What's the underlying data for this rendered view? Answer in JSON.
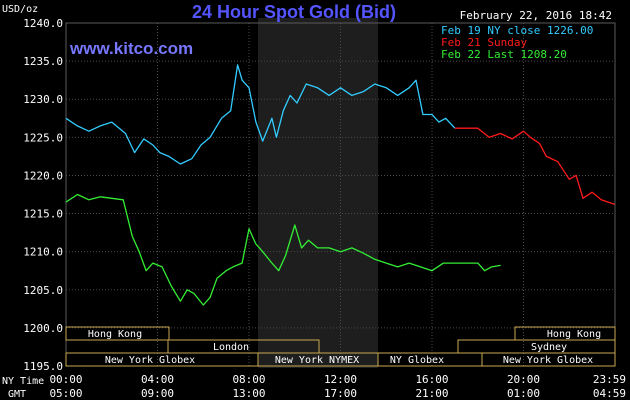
{
  "header": {
    "title": "24 Hour Spot Gold (Bid)",
    "date": "February 22, 2016 18:42",
    "site": "www.kitco.com",
    "unit": "USD/oz"
  },
  "legend": [
    {
      "label": "Feb 19 NY close 1226.00",
      "color": "#33ccff"
    },
    {
      "label": "Feb 21 Sunday",
      "color": "#ff1a1a"
    },
    {
      "label": "Feb 22 Last 1208.20",
      "color": "#33ee33"
    }
  ],
  "axis": {
    "y_ticks": [
      "1240.0",
      "1235.0",
      "1230.0",
      "1225.0",
      "1220.0",
      "1215.0",
      "1210.0",
      "1205.0",
      "1200.0",
      "1195.0"
    ],
    "ny_label": "NY Time",
    "gmt_label": "GMT",
    "ny_ticks": [
      "00:00",
      "04:00",
      "08:00",
      "12:00",
      "16:00",
      "20:00",
      "23:59"
    ],
    "gmt_ticks": [
      "05:00",
      "09:00",
      "13:00",
      "17:00",
      "21:00",
      "01:00",
      "04:59"
    ]
  },
  "sessions": {
    "hong_kong_1": "Hong Kong",
    "hong_kong_2": "Hong Kong",
    "london": "London",
    "sydney": "Sydney",
    "ny_globex_1": "New York Globex",
    "ny_nymex": "New York NYMEX",
    "ny_globex_2": "NY Globex",
    "ny_globex_3": "New York Globex"
  },
  "colors": {
    "background": "#000000",
    "grid": "#4a4a4a",
    "axis_text": "#ffffff",
    "title": "#5555ff",
    "site": "#7777ff",
    "highlight": "#1e1e1e",
    "session_box": "#c8a850"
  },
  "chart_data": {
    "type": "line",
    "title": "24 Hour Spot Gold (Bid)",
    "ylabel": "USD/oz",
    "xlabel": "NY Time",
    "ylim": [
      1195,
      1240
    ],
    "xlim_hours": [
      0,
      24
    ],
    "grid": true,
    "legend_position": "top-right",
    "series": [
      {
        "name": "Feb 19 NY close 1226.00",
        "color": "#33ccff",
        "x": [
          0,
          0.5,
          1,
          1.5,
          2,
          2.6,
          3,
          3.4,
          3.8,
          4.1,
          4.5,
          5,
          5.5,
          5.9,
          6.3,
          6.8,
          7.2,
          7.5,
          7.7,
          8,
          8.3,
          8.6,
          9,
          9.2,
          9.5,
          9.8,
          10.1,
          10.5,
          11,
          11.5,
          12,
          12.5,
          13,
          13.5,
          14,
          14.5,
          15,
          15.3,
          15.6,
          16,
          16.3,
          16.6,
          17
        ],
        "y": [
          1227.5,
          1226.5,
          1225.8,
          1226.5,
          1227.0,
          1225.5,
          1223.0,
          1224.8,
          1224.0,
          1223.0,
          1222.5,
          1221.5,
          1222.2,
          1224.0,
          1225.0,
          1227.5,
          1228.5,
          1234.5,
          1232.5,
          1231.5,
          1227.0,
          1224.5,
          1227.5,
          1225.0,
          1228.5,
          1230.5,
          1229.5,
          1232.0,
          1231.5,
          1230.5,
          1231.5,
          1230.5,
          1231.0,
          1232.0,
          1231.5,
          1230.5,
          1231.5,
          1232.5,
          1228.0,
          1228.0,
          1227.0,
          1227.5,
          1226.2
        ]
      },
      {
        "name": "Feb 21 Sunday",
        "color": "#ff1a1a",
        "x": [
          17,
          18,
          18.5,
          19,
          19.5,
          20,
          20.3,
          20.7,
          21,
          21.5,
          22,
          22.3,
          22.6,
          23,
          23.4,
          23.99
        ],
        "y": [
          1226.2,
          1226.2,
          1225.0,
          1225.5,
          1224.8,
          1225.8,
          1225.0,
          1224.2,
          1222.5,
          1221.8,
          1219.5,
          1220.0,
          1217.0,
          1217.8,
          1216.8,
          1216.2
        ]
      },
      {
        "name": "Feb 22 Last 1208.20",
        "color": "#33ee33",
        "x": [
          0,
          0.5,
          1,
          1.5,
          2,
          2.5,
          2.9,
          3.2,
          3.5,
          3.8,
          4.2,
          4.6,
          5,
          5.3,
          5.6,
          6,
          6.3,
          6.6,
          7,
          7.3,
          7.7,
          8,
          8.3,
          8.6,
          9,
          9.3,
          9.6,
          10,
          10.3,
          10.6,
          11,
          11.5,
          12,
          12.5,
          13,
          13.5,
          14,
          14.5,
          15,
          15.5,
          16,
          16.5,
          17,
          17.5,
          18,
          18.3,
          18.6,
          19
        ],
        "y": [
          1216.5,
          1217.5,
          1216.8,
          1217.2,
          1217.0,
          1216.8,
          1212.0,
          1210.0,
          1207.5,
          1208.5,
          1208.0,
          1205.5,
          1203.5,
          1205.0,
          1204.5,
          1203.0,
          1204.0,
          1206.5,
          1207.5,
          1208.0,
          1208.5,
          1213.0,
          1211.0,
          1210.0,
          1208.5,
          1207.5,
          1209.5,
          1213.5,
          1210.5,
          1211.5,
          1210.5,
          1210.5,
          1210.0,
          1210.5,
          1209.8,
          1209.0,
          1208.5,
          1208.0,
          1208.5,
          1208.0,
          1207.5,
          1208.5,
          1208.5,
          1208.5,
          1208.5,
          1207.5,
          1208.0,
          1208.2
        ]
      }
    ]
  }
}
